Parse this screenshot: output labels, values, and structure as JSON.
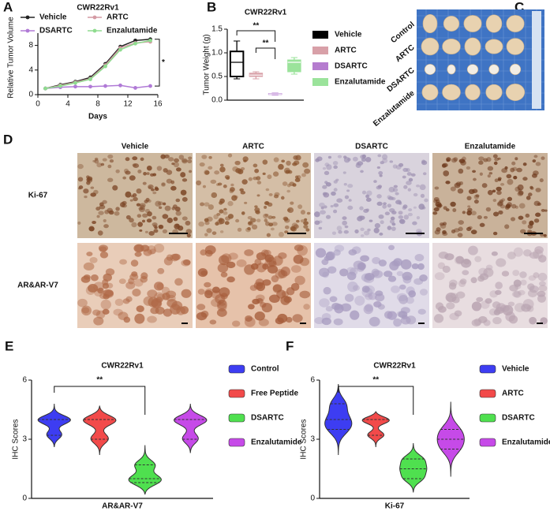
{
  "panel_labels": [
    "A",
    "B",
    "C",
    "D",
    "E",
    "F"
  ],
  "chart_data": [
    {
      "type": "line",
      "title": "CWR22Rv1",
      "xlabel": "Days",
      "ylabel": "Relative Tumor Volume",
      "x": [
        1,
        3,
        5,
        7,
        9,
        11,
        13,
        15
      ],
      "xlim": [
        0,
        16
      ],
      "xticks": [
        0,
        4,
        8,
        12,
        16
      ],
      "ylim": [
        0,
        10
      ],
      "yticks": [
        0,
        4,
        8
      ],
      "annotation": "*",
      "series": [
        {
          "name": "Vehicle",
          "color": "#222222",
          "values": [
            1,
            1.6,
            2.1,
            2.8,
            5,
            7.8,
            8.8,
            9
          ]
        },
        {
          "name": "ARTC",
          "color": "#d49aa4",
          "values": [
            1,
            1.5,
            2,
            2.6,
            4.8,
            7.6,
            8.4,
            8.6
          ]
        },
        {
          "name": "DSARTC",
          "color": "#b07ad6",
          "values": [
            1,
            1.2,
            1.3,
            1.3,
            1.4,
            1.5,
            1.1,
            1.4
          ]
        },
        {
          "name": "Enzalutamide",
          "color": "#8fdc8f",
          "values": [
            1,
            1.4,
            1.9,
            2.5,
            4.6,
            7.3,
            8.3,
            8.8
          ]
        }
      ]
    },
    {
      "type": "box",
      "title": "CWR22Rv1",
      "ylabel": "Tumor Weight (g)",
      "ylim": [
        0,
        1.5
      ],
      "yticks": [
        {
          "value": 0,
          "label": "0.0"
        },
        {
          "value": 0.5,
          "label": "0.5"
        },
        {
          "value": 1,
          "label": "1.0"
        },
        {
          "value": 1.5,
          "label": "1.5"
        }
      ],
      "annotations": [
        "**",
        "**"
      ],
      "series": [
        {
          "name": "Vehicle",
          "color": "#000000",
          "min": 0.45,
          "q1": 0.5,
          "median": 0.8,
          "q3": 1.03,
          "max": 1.25
        },
        {
          "name": "ARTC",
          "color": "#d8a0a8",
          "min": 0.45,
          "q1": 0.5,
          "median": 0.53,
          "q3": 0.57,
          "max": 0.6
        },
        {
          "name": "DSARTC",
          "color": "#b57ccf",
          "min": 0.11,
          "q1": 0.12,
          "median": 0.13,
          "q3": 0.14,
          "max": 0.15
        },
        {
          "name": "Enzalutamide",
          "color": "#9be39b",
          "min": 0.55,
          "q1": 0.6,
          "median": 0.8,
          "q3": 0.85,
          "max": 0.9
        }
      ]
    },
    {
      "type": "violin",
      "title": "CWR22Rv1",
      "ylabel": "IHC Scores",
      "xlabel": "AR&AR-V7",
      "ylim": [
        0,
        6
      ],
      "yticks": [
        0,
        3,
        6
      ],
      "annotation": "**",
      "series": [
        {
          "name": "Control",
          "color": "#3d3df2",
          "min": 2.6,
          "q1": 3.2,
          "median": 4,
          "q3": 4,
          "max": 4.8
        },
        {
          "name": "Free Peptide",
          "color": "#f24a4a",
          "min": 2.2,
          "q1": 3,
          "median": 4,
          "q3": 4,
          "max": 4.7
        },
        {
          "name": "DSARTC",
          "color": "#4fe04f",
          "min": 0.2,
          "q1": 0.8,
          "median": 1,
          "q3": 1.7,
          "max": 2.7
        },
        {
          "name": "Enzalutamide",
          "color": "#c64ae8",
          "min": 2.3,
          "q1": 3,
          "median": 4,
          "q3": 4,
          "max": 4.8
        }
      ]
    },
    {
      "type": "violin",
      "title": "CWR22Rv1",
      "ylabel": "IHC Scores",
      "xlabel": "Ki-67",
      "ylim": [
        0,
        6
      ],
      "yticks": [
        0,
        3,
        6
      ],
      "annotation": "**",
      "series": [
        {
          "name": "Vehicle",
          "color": "#3d3df2",
          "min": 2.2,
          "q1": 3.5,
          "median": 4,
          "q3": 4.8,
          "max": 5.8
        },
        {
          "name": "ARTC",
          "color": "#f24a4a",
          "min": 2.6,
          "q1": 3.2,
          "median": 4,
          "q3": 4,
          "max": 4.4
        },
        {
          "name": "DSARTC",
          "color": "#4fe04f",
          "min": 0.3,
          "q1": 1,
          "median": 1.5,
          "q3": 2,
          "max": 2.8
        },
        {
          "name": "Enzalutamide",
          "color": "#c64ae8",
          "min": 1.1,
          "q1": 2.5,
          "median": 3,
          "q3": 3.5,
          "max": 4.9
        }
      ]
    }
  ],
  "photo": {
    "labels": [
      "Control",
      "ARTC",
      "DSARTC",
      "Enzalutamide"
    ]
  },
  "ihc": {
    "columns": [
      "Vehicle",
      "ARTC",
      "DSARTC",
      "Enzalutamide"
    ],
    "rows": [
      "Ki-67",
      "AR&AR-V7"
    ]
  }
}
